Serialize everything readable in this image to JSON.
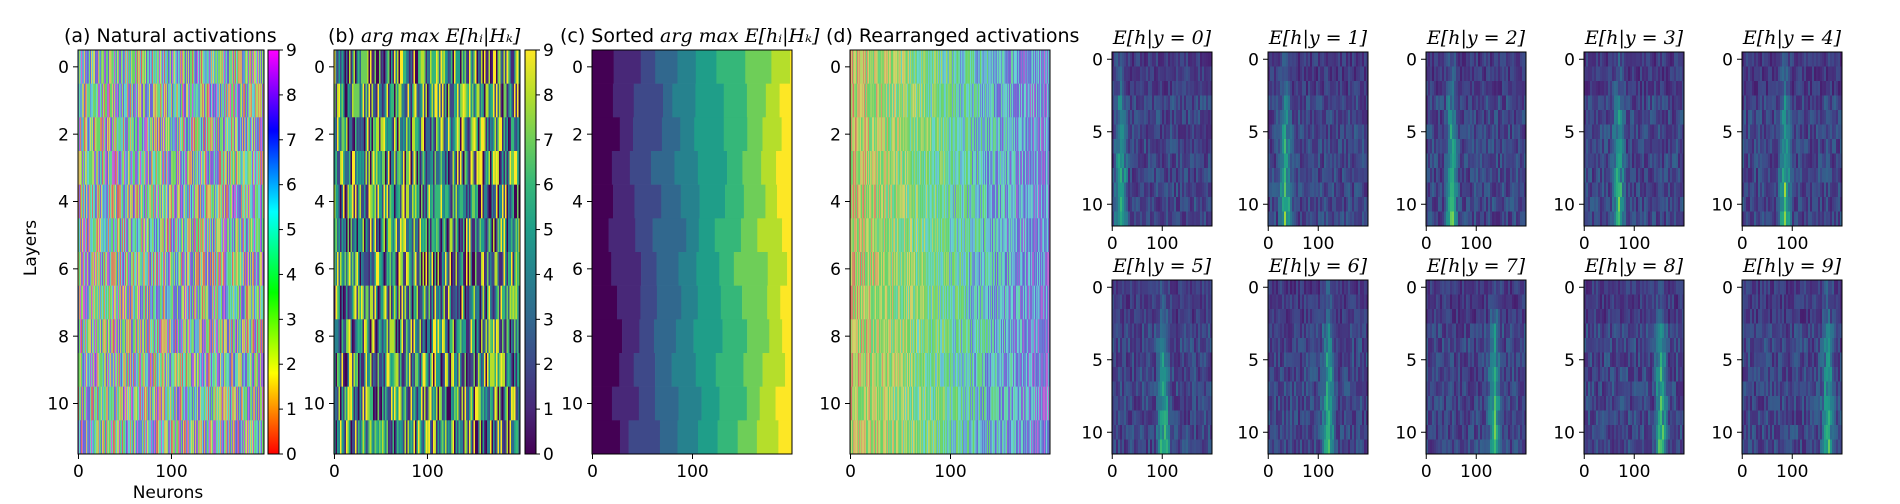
{
  "figure": {
    "ylabel": "Layers",
    "xlabel": "Neurons"
  },
  "colormaps": {
    "hue_stops": [
      "#ff0000",
      "#ff8000",
      "#ffff00",
      "#80ff00",
      "#00ff00",
      "#00ff80",
      "#00ffff",
      "#0080ff",
      "#0000ff",
      "#8000ff",
      "#ff00ff"
    ],
    "viridis_stops": [
      "#440154",
      "#482878",
      "#3e4989",
      "#31688e",
      "#26828e",
      "#1f9e89",
      "#35b779",
      "#6ece58",
      "#b5de2b",
      "#fde725"
    ]
  },
  "chart_data": [
    {
      "id": "a",
      "type": "heatmap",
      "title": "(a) Natural activations",
      "colormap": "hue",
      "n_layers": 12,
      "n_neurons": 200,
      "yticks": [
        "0",
        "2",
        "4",
        "6",
        "8",
        "10"
      ],
      "ytick_values": [
        0,
        2,
        4,
        6,
        8,
        10
      ],
      "xticks": [
        "0",
        "100"
      ],
      "xtick_values": [
        0,
        100
      ],
      "colorbar": {
        "range": [
          0,
          9
        ],
        "ticks": [
          "0",
          "1",
          "2",
          "3",
          "4",
          "5",
          "6",
          "7",
          "8",
          "9"
        ]
      }
    },
    {
      "id": "b",
      "type": "heatmap",
      "title_prefix": "(b) ",
      "title_math": "arg max E[hᵢ|Hₖ]",
      "colormap": "viridis",
      "n_layers": 12,
      "n_neurons": 200,
      "yticks": [
        "0",
        "2",
        "4",
        "6",
        "8",
        "10"
      ],
      "ytick_values": [
        0,
        2,
        4,
        6,
        8,
        10
      ],
      "xticks": [
        "0",
        "100"
      ],
      "xtick_values": [
        0,
        100
      ],
      "colorbar": {
        "range": [
          0,
          9
        ],
        "ticks": [
          "0",
          "1",
          "2",
          "3",
          "4",
          "5",
          "6",
          "7",
          "8",
          "9"
        ]
      }
    },
    {
      "id": "c",
      "type": "heatmap",
      "title_prefix": "(c) Sorted ",
      "title_math": "arg max E[hᵢ|Hₖ]",
      "colormap": "viridis",
      "n_layers": 12,
      "n_neurons": 200,
      "yticks": [
        "0",
        "2",
        "4",
        "6",
        "8",
        "10"
      ],
      "ytick_values": [
        0,
        2,
        4,
        6,
        8,
        10
      ],
      "xticks": [
        "0",
        "100"
      ],
      "xtick_values": [
        0,
        100
      ]
    },
    {
      "id": "d",
      "type": "heatmap",
      "title": "(d) Rearranged activations",
      "colormap": "hue",
      "n_layers": 12,
      "n_neurons": 200,
      "yticks": [
        "0",
        "2",
        "4",
        "6",
        "8",
        "10"
      ],
      "ytick_values": [
        0,
        2,
        4,
        6,
        8,
        10
      ],
      "xticks": [
        "0",
        "100"
      ],
      "xtick_values": [
        0,
        100
      ]
    },
    {
      "id": "class_grid",
      "type": "heatmap",
      "colormap": "viridis",
      "n_layers": 12,
      "n_neurons": 200,
      "yticks": [
        "0",
        "5",
        "10"
      ],
      "ytick_values": [
        0,
        5,
        10
      ],
      "xticks": [
        "0",
        "100"
      ],
      "xtick_values": [
        0,
        100
      ],
      "panels": [
        {
          "label": "E[h|y = 0]",
          "class": 0
        },
        {
          "label": "E[h|y = 1]",
          "class": 1
        },
        {
          "label": "E[h|y = 2]",
          "class": 2
        },
        {
          "label": "E[h|y = 3]",
          "class": 3
        },
        {
          "label": "E[h|y = 4]",
          "class": 4
        },
        {
          "label": "E[h|y = 5]",
          "class": 5
        },
        {
          "label": "E[h|y = 6]",
          "class": 6
        },
        {
          "label": "E[h|y = 7]",
          "class": 7
        },
        {
          "label": "E[h|y = 8]",
          "class": 8
        },
        {
          "label": "E[h|y = 9]",
          "class": 9
        }
      ]
    }
  ]
}
